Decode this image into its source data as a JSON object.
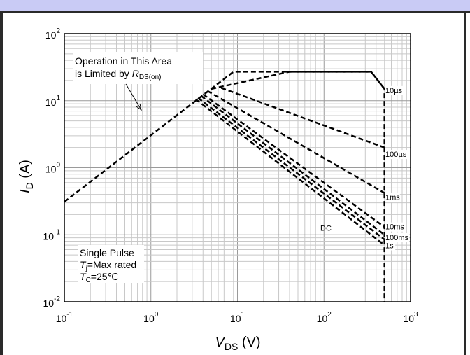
{
  "chart_data": {
    "type": "line",
    "x_scale": "log",
    "y_scale": "log",
    "xlim": [
      0.1,
      1000
    ],
    "ylim": [
      0.01,
      100
    ],
    "grid": true,
    "x_ticks": [
      {
        "value": 0.1,
        "base": "10",
        "exp": "-1"
      },
      {
        "value": 1,
        "base": "10",
        "exp": "0"
      },
      {
        "value": 10,
        "base": "10",
        "exp": "1"
      },
      {
        "value": 100,
        "base": "10",
        "exp": "2"
      },
      {
        "value": 1000,
        "base": "10",
        "exp": "3"
      }
    ],
    "y_ticks": [
      {
        "value": 0.01,
        "base": "10",
        "exp": "-2"
      },
      {
        "value": 0.1,
        "base": "10",
        "exp": "-1"
      },
      {
        "value": 1,
        "base": "10",
        "exp": "0"
      },
      {
        "value": 10,
        "base": "10",
        "exp": "1"
      },
      {
        "value": 100,
        "base": "10",
        "exp": "2"
      }
    ],
    "xlabel": {
      "main": "V",
      "sub": "DS",
      "unit": " (V)"
    },
    "ylabel": {
      "main": "I",
      "sub": "D",
      "unit": " (A)"
    },
    "series": [
      {
        "name": "10µs",
        "points": [
          [
            0.1,
            0.31
          ],
          [
            9,
            27
          ],
          [
            350,
            27
          ],
          [
            500,
            15
          ],
          [
            500,
            0.01
          ]
        ]
      },
      {
        "name": "100µs",
        "points": [
          [
            5,
            15
          ],
          [
            40,
            27
          ],
          [
            350,
            27
          ],
          [
            500,
            15
          ]
        ],
        "tail": [
          [
            6.5,
            15.5
          ],
          [
            500,
            2.0
          ]
        ]
      },
      {
        "name": "1ms",
        "points": [
          [
            4.5,
            14
          ],
          [
            500,
            0.42
          ]
        ]
      },
      {
        "name": "10ms",
        "points": [
          [
            4,
            12.5
          ],
          [
            500,
            0.13
          ]
        ]
      },
      {
        "name": "100ms",
        "points": [
          [
            3.8,
            11.8
          ],
          [
            500,
            0.1
          ]
        ]
      },
      {
        "name": "1s",
        "points": [
          [
            3.5,
            11
          ],
          [
            500,
            0.085
          ]
        ]
      },
      {
        "name": "DC",
        "points": [
          [
            3.3,
            10.5
          ],
          [
            500,
            0.07
          ]
        ]
      }
    ],
    "series_labels": [
      {
        "text": "10µs",
        "x": 520,
        "y": 13
      },
      {
        "text": "100µs",
        "x": 520,
        "y": 1.45
      },
      {
        "text": "1ms",
        "x": 520,
        "y": 0.33
      },
      {
        "text": "10ms",
        "x": 520,
        "y": 0.12
      },
      {
        "text": "100ms",
        "x": 520,
        "y": 0.083
      },
      {
        "text": "1s",
        "x": 520,
        "y": 0.063
      },
      {
        "text": "DC",
        "x": 55,
        "y": 0.115
      }
    ],
    "annotations": {
      "rds_line1": "Operation in This Area",
      "rds_line2_prefix": "is Limited by ",
      "rds_main": "R",
      "rds_sub": "DS(on)",
      "note_line1": "Single Pulse",
      "note_tj_main": "T",
      "note_tj_sub": "j",
      "note_tj_rest": "=Max rated",
      "note_tc_main": "T",
      "note_tc_sub": "C",
      "note_tc_rest": "=25℃"
    }
  }
}
